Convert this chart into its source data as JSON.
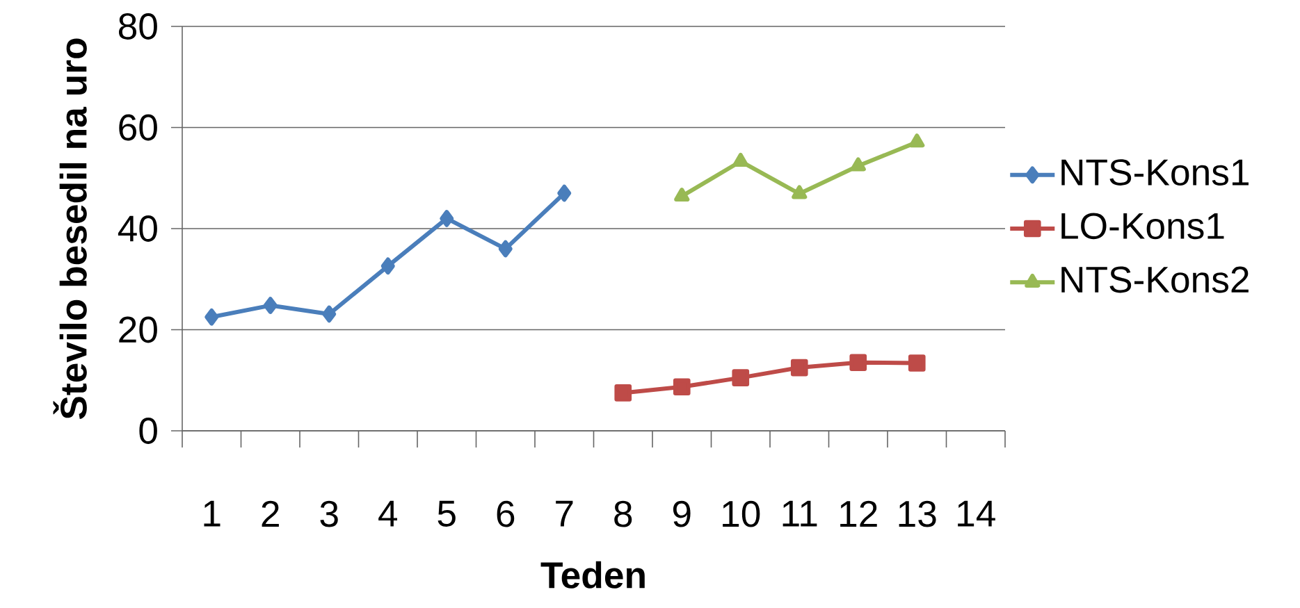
{
  "chart_data": {
    "type": "line",
    "xlabel": "Teden",
    "ylabel": "Število besedil na uro",
    "categories": [
      "1",
      "2",
      "3",
      "4",
      "5",
      "6",
      "7",
      "8",
      "9",
      "10",
      "11",
      "12",
      "13",
      "14"
    ],
    "series": [
      {
        "name": "NTS-Kons1",
        "color": "#4a7ebb",
        "marker": "diamond",
        "values": [
          22.5,
          24.8,
          23.1,
          32.6,
          42.0,
          36.0,
          47.0,
          null,
          null,
          null,
          null,
          null,
          null,
          null
        ]
      },
      {
        "name": "LO-Kons1",
        "color": "#be4b48",
        "marker": "square",
        "values": [
          null,
          null,
          null,
          null,
          null,
          null,
          null,
          7.5,
          8.7,
          10.5,
          12.5,
          13.5,
          13.4,
          null
        ]
      },
      {
        "name": "NTS-Kons2",
        "color": "#98b954",
        "marker": "triangle",
        "values": [
          null,
          null,
          null,
          null,
          null,
          null,
          null,
          null,
          46.4,
          53.3,
          46.9,
          52.4,
          57.1,
          null
        ]
      }
    ],
    "ylim": [
      0,
      80
    ],
    "yticks": [
      0,
      20,
      40,
      60,
      80
    ],
    "grid": "y",
    "legend": "right",
    "line_style": "solid"
  }
}
